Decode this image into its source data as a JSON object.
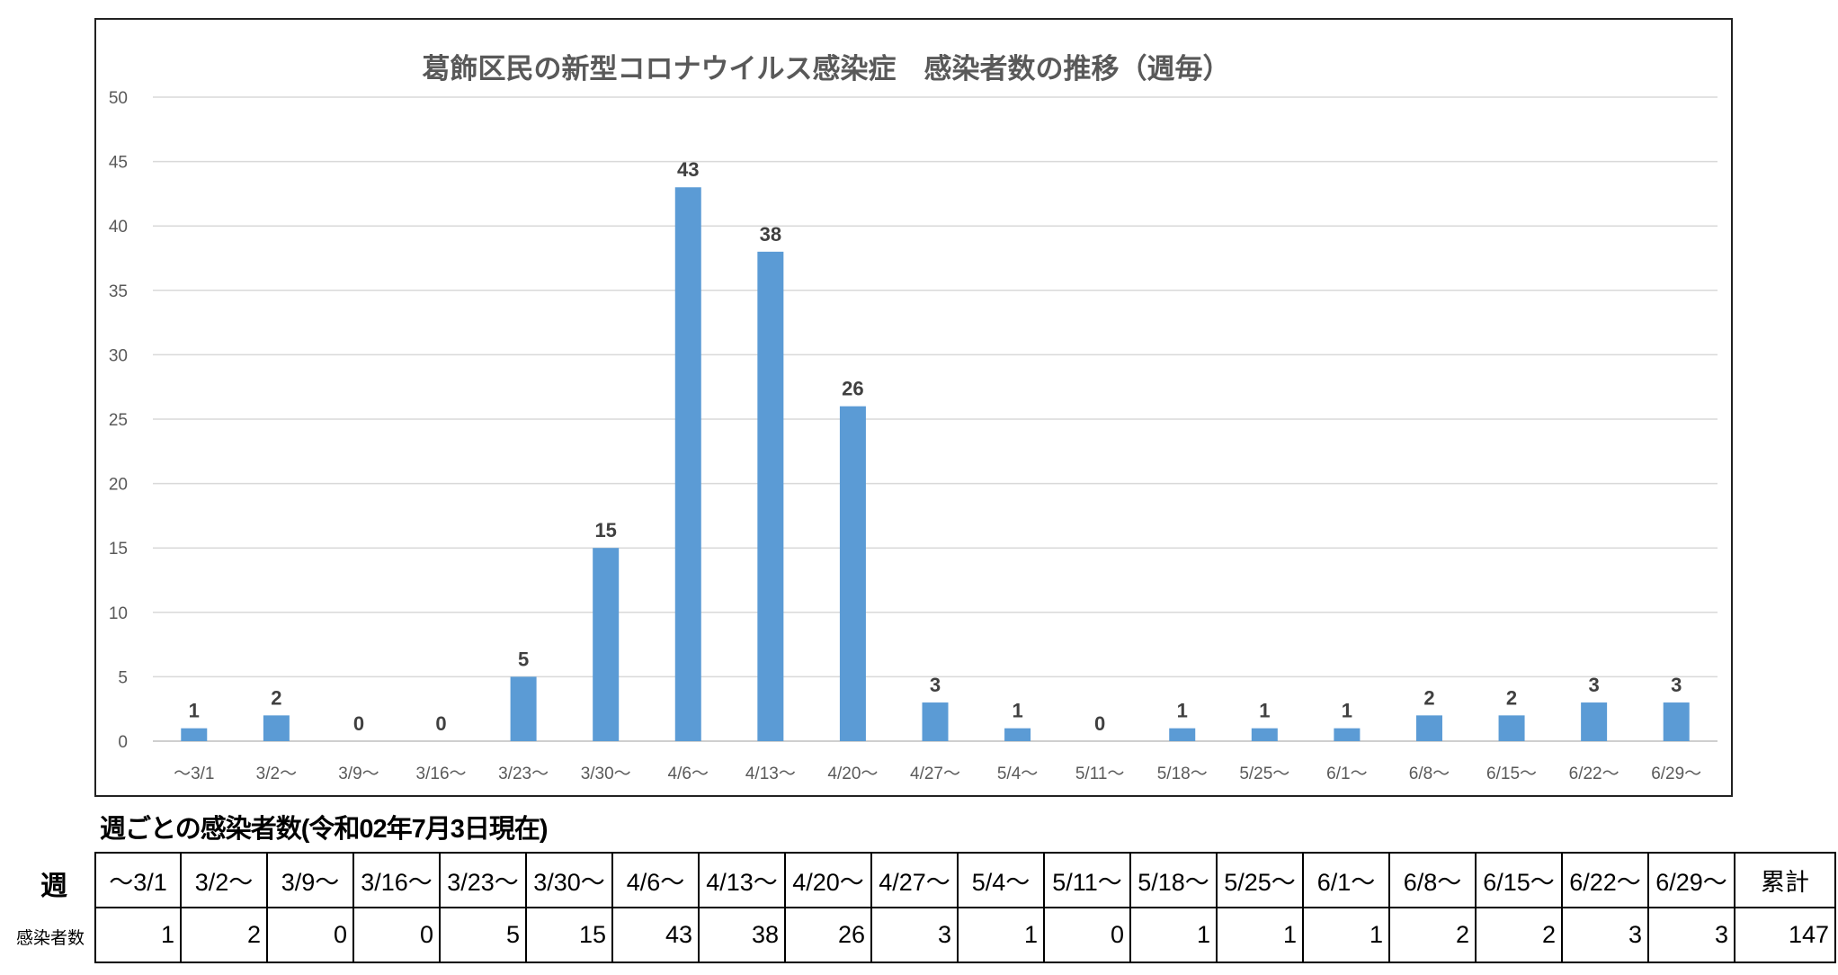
{
  "chart_data": {
    "type": "bar",
    "title": "葛飾区民の新型コロナウイルス感染症　感染者数の推移（週毎）",
    "xlabel": "",
    "ylabel": "",
    "ylim": [
      0,
      50
    ],
    "yticks": [
      0,
      5,
      10,
      15,
      20,
      25,
      30,
      35,
      40,
      45,
      50
    ],
    "grid": true,
    "categories": [
      "〜3/1",
      "3/2〜",
      "3/9〜",
      "3/16〜",
      "3/23〜",
      "3/30〜",
      "4/6〜",
      "4/13〜",
      "4/20〜",
      "4/27〜",
      "5/4〜",
      "5/11〜",
      "5/18〜",
      "5/25〜",
      "6/1〜",
      "6/8〜",
      "6/15〜",
      "6/22〜",
      "6/29〜"
    ],
    "values": [
      1,
      2,
      0,
      0,
      5,
      15,
      43,
      38,
      26,
      3,
      1,
      0,
      1,
      1,
      1,
      2,
      2,
      3,
      3
    ],
    "bar_color": "#5B9BD5"
  },
  "table": {
    "title": "週ごとの感染者数(令和02年7月3日現在)",
    "row_header_week": "週",
    "row_header_count": "感染者数",
    "weeks": [
      "〜3/1",
      "3/2〜",
      "3/9〜",
      "3/16〜",
      "3/23〜",
      "3/30〜",
      "4/6〜",
      "4/13〜",
      "4/20〜",
      "4/27〜",
      "5/4〜",
      "5/11〜",
      "5/18〜",
      "5/25〜",
      "6/1〜",
      "6/8〜",
      "6/15〜",
      "6/22〜",
      "6/29〜"
    ],
    "counts": [
      "1",
      "2",
      "0",
      "0",
      "5",
      "15",
      "43",
      "38",
      "26",
      "3",
      "1",
      "0",
      "1",
      "1",
      "1",
      "2",
      "2",
      "3",
      "3"
    ],
    "total_label": "累計",
    "total_value": "147"
  }
}
